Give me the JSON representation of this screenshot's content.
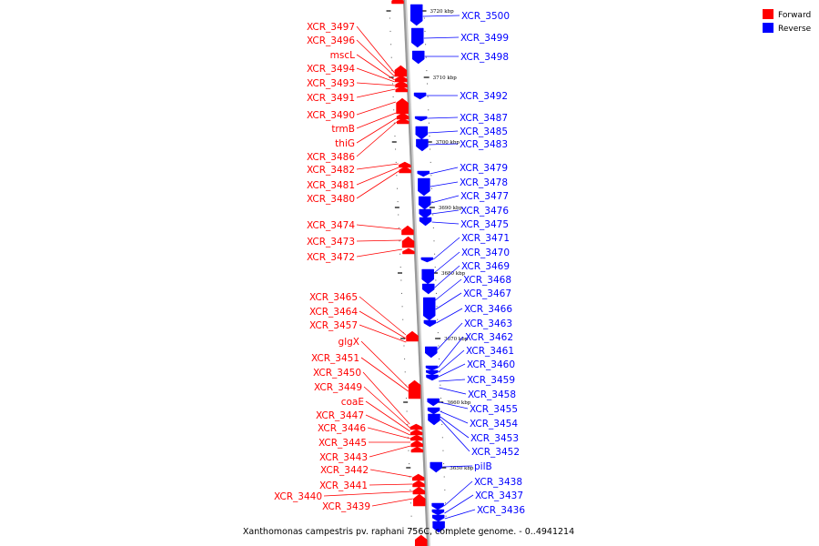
{
  "caption": "Xanthomonas campestris pv. raphani 756C, complete genome. - 0..4941214",
  "legend": [
    {
      "label": "Forward",
      "color": "#ff0000"
    },
    {
      "label": "Reverse",
      "color": "#0000ff"
    }
  ],
  "colors": {
    "forward": "#ff0000",
    "reverse": "#0000ff",
    "backbone": "#999999"
  },
  "scale_labels": [
    "3720 kbp",
    "3710 kbp",
    "3700 kbp",
    "3690 kbp",
    "3680 kbp",
    "3670 kbp",
    "3660 kbp",
    "3650 kbp"
  ],
  "left_labels": [
    "XCR_3497",
    "XCR_3496",
    "mscL",
    "XCR_3494",
    "XCR_3493",
    "XCR_3491",
    "XCR_3490",
    "trmB",
    "thiG",
    "XCR_3486",
    "XCR_3482",
    "XCR_3481",
    "XCR_3480",
    "XCR_3474",
    "XCR_3473",
    "XCR_3472",
    "XCR_3465",
    "XCR_3464",
    "XCR_3457",
    "glgX",
    "XCR_3451",
    "XCR_3450",
    "XCR_3449",
    "coaE",
    "XCR_3447",
    "XCR_3446",
    "XCR_3445",
    "XCR_3443",
    "XCR_3442",
    "XCR_3441",
    "XCR_3440",
    "XCR_3439"
  ],
  "right_labels": [
    "XCR_3500",
    "XCR_3499",
    "XCR_3498",
    "XCR_3492",
    "XCR_3487",
    "XCR_3485",
    "XCR_3483",
    "XCR_3479",
    "XCR_3478",
    "XCR_3477",
    "XCR_3476",
    "XCR_3475",
    "XCR_3471",
    "XCR_3470",
    "XCR_3469",
    "XCR_3468",
    "XCR_3467",
    "XCR_3466",
    "XCR_3463",
    "XCR_3462",
    "XCR_3461",
    "XCR_3460",
    "XCR_3459",
    "XCR_3458",
    "XCR_3455",
    "XCR_3454",
    "XCR_3453",
    "XCR_3452",
    "pilB",
    "XCR_3438",
    "XCR_3437",
    "XCR_3436"
  ]
}
